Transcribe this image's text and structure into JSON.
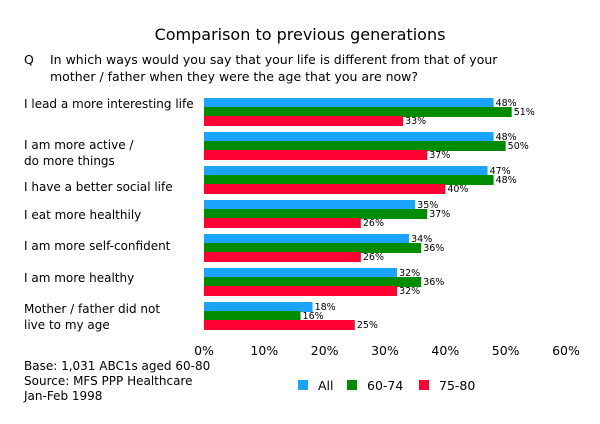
{
  "title": "Comparison to previous generations",
  "question": {
    "marker": "Q",
    "line1": "In which ways would you say that your life is different from that of your",
    "line2": "mother / father when they were the age that you are now?"
  },
  "footer": {
    "base": "Base: 1,031 ABC1s aged 60-80",
    "source": "Source: MFS PPP Healthcare",
    "date": "Jan-Feb 1998"
  },
  "colors": {
    "All": "#1aa3ff",
    "60-74": "#008c00",
    "75-80": "#ff0033"
  },
  "chart_data": {
    "type": "bar",
    "orientation": "horizontal",
    "categories": [
      [
        "I lead a more interesting life"
      ],
      [
        "I am more active /",
        "do more things"
      ],
      [
        "I have a better social life"
      ],
      [
        "I eat more healthily"
      ],
      [
        "I am more self-confident"
      ],
      [
        "I am more healthy"
      ],
      [
        "Mother / father did not",
        "live to my age"
      ]
    ],
    "series": [
      {
        "name": "All",
        "values": [
          48,
          48,
          47,
          35,
          34,
          32,
          18
        ]
      },
      {
        "name": "60-74",
        "values": [
          51,
          50,
          48,
          37,
          36,
          36,
          16
        ]
      },
      {
        "name": "75-80",
        "values": [
          33,
          37,
          40,
          26,
          26,
          32,
          25
        ]
      }
    ],
    "value_suffix": "%",
    "xlim": [
      0,
      60
    ],
    "ticks": [
      "0%",
      "10%",
      "20%",
      "30%",
      "40%",
      "50%",
      "60%"
    ],
    "grid": false,
    "legend_position": "bottom-right"
  }
}
